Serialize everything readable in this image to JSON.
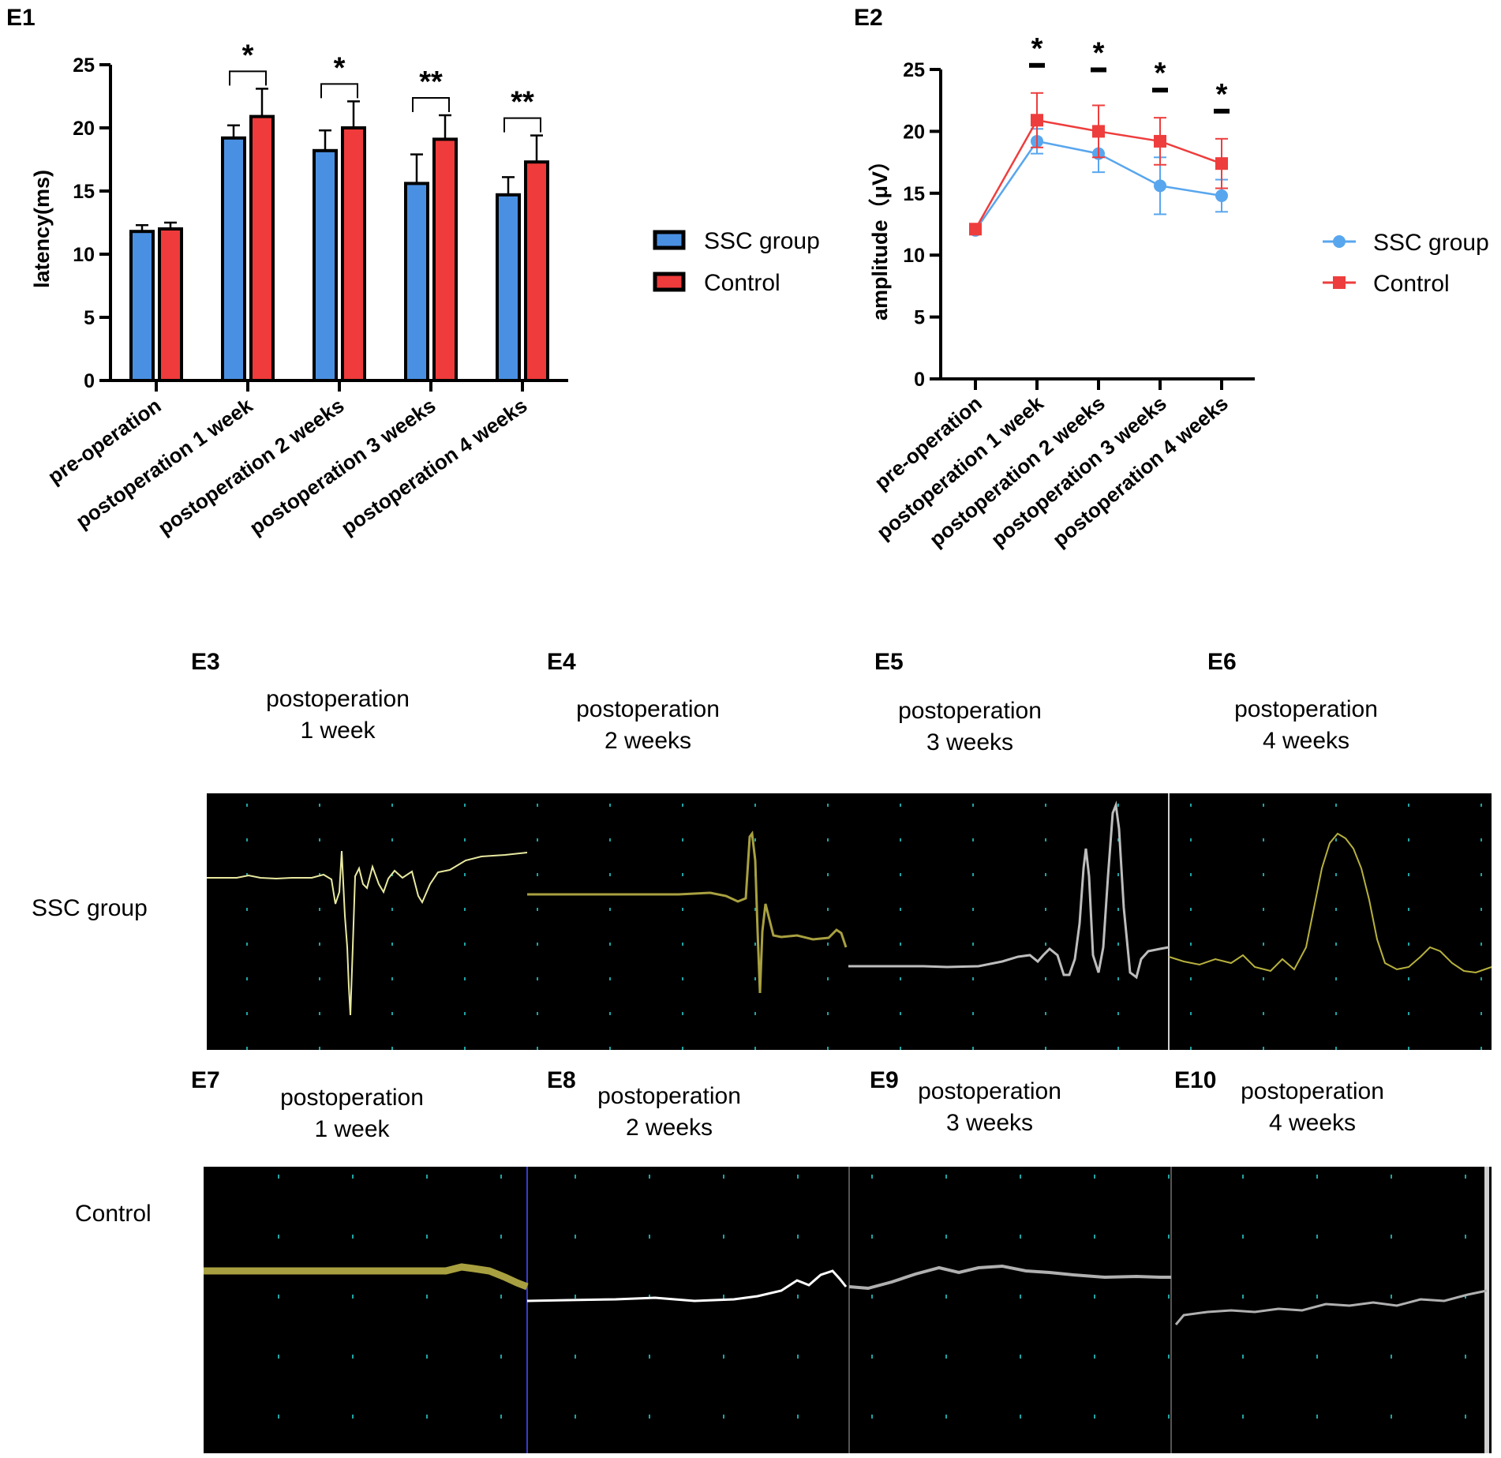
{
  "colors": {
    "ssc_bar": "#4a90e2",
    "control_bar": "#ef3b3b",
    "ssc_line": "#58a6ee",
    "control_line": "#ee3d3d",
    "trace_bg": "#000000",
    "grid_dot": "#1fa3a3"
  },
  "chart_data": [
    {
      "id": "E1",
      "type": "bar",
      "title": "",
      "xlabel": "",
      "ylabel": "latency(ms)",
      "ylim": [
        0,
        25
      ],
      "yticks": [
        "0",
        "5",
        "10",
        "15",
        "20",
        "25"
      ],
      "categories": [
        "pre-operation",
        "postoperation 1 week",
        "postoperation 2 weeks",
        "postoperation 3 weeks",
        "postoperation 4 weeks"
      ],
      "series": [
        {
          "name": "SSC group",
          "values": [
            11.8,
            19.2,
            18.2,
            15.6,
            14.7
          ],
          "errors": [
            0.5,
            1.0,
            1.6,
            2.3,
            1.4
          ]
        },
        {
          "name": "Control",
          "values": [
            12.0,
            20.9,
            20.0,
            19.1,
            17.3
          ],
          "errors": [
            0.5,
            2.2,
            2.1,
            1.9,
            2.1
          ]
        }
      ],
      "significance": [
        "",
        "*",
        "*",
        "**",
        "**"
      ],
      "legend": {
        "position": "right",
        "entries": [
          "SSC group",
          "Control"
        ]
      }
    },
    {
      "id": "E2",
      "type": "line",
      "title": "",
      "xlabel": "",
      "ylabel": "amplitude（μV）",
      "ylim": [
        0,
        25
      ],
      "yticks": [
        "0",
        "5",
        "10",
        "15",
        "20",
        "25"
      ],
      "categories": [
        "pre-operation",
        "postoperation 1 week",
        "postoperation 2 weeks",
        "postoperation 3 weeks",
        "postoperation 4 weeks"
      ],
      "series": [
        {
          "name": "SSC group",
          "values": [
            12.0,
            19.2,
            18.2,
            15.6,
            14.8
          ],
          "errors": [
            0.3,
            1.0,
            1.5,
            2.3,
            1.3
          ]
        },
        {
          "name": "Control",
          "values": [
            12.1,
            20.9,
            20.0,
            19.2,
            17.4
          ],
          "errors": [
            0.3,
            2.2,
            2.1,
            1.9,
            2.0
          ]
        }
      ],
      "significance": [
        "",
        "*",
        "*",
        "*",
        "*"
      ],
      "legend": {
        "position": "right",
        "entries": [
          "SSC group",
          "Control"
        ]
      }
    }
  ],
  "panels": {
    "e1_letter": "E1",
    "e2_letter": "E2"
  },
  "traces": {
    "ssc_row_label": "SSC group",
    "control_row_label": "Control",
    "ssc": [
      {
        "letter": "E3",
        "line1": "postoperation",
        "line2": "1 week"
      },
      {
        "letter": "E4",
        "line1": "postoperation",
        "line2": "2 weeks"
      },
      {
        "letter": "E5",
        "line1": "postoperation",
        "line2": "3 weeks"
      },
      {
        "letter": "E6",
        "line1": "postoperation",
        "line2": "4 weeks"
      }
    ],
    "control": [
      {
        "letter": "E7",
        "line1": "postoperation",
        "line2": "1 week"
      },
      {
        "letter": "E8",
        "line1": "postoperation",
        "line2": "2 weeks"
      },
      {
        "letter": "E9",
        "line1": "postoperation",
        "line2": "3 weeks"
      },
      {
        "letter": "E10",
        "line1": "postoperation",
        "line2": "4 weeks"
      }
    ]
  }
}
